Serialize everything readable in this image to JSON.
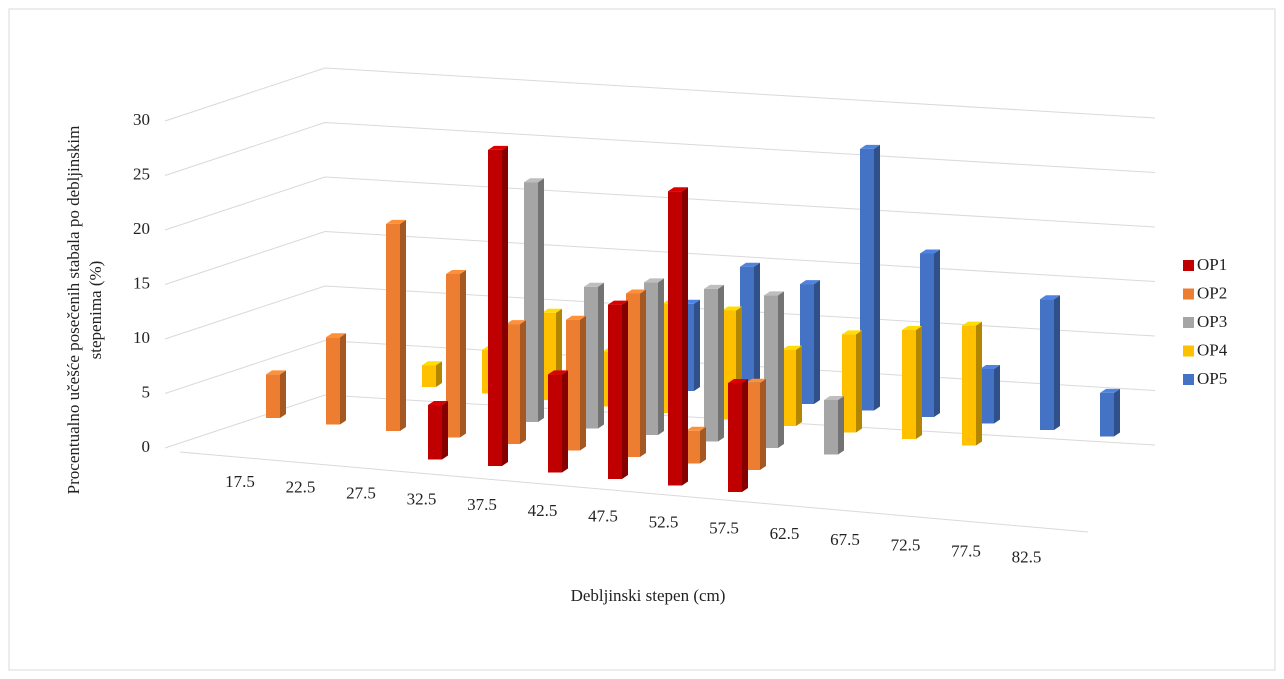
{
  "chart_data": {
    "type": "bar3d",
    "ylabel": [
      "Procentualno učešće posečenih stabala po debljinskim",
      "stepenima (%)"
    ],
    "xlabel": "Debljinski stepen (cm)",
    "categories": [
      "17.5",
      "22.5",
      "27.5",
      "32.5",
      "37.5",
      "42.5",
      "47.5",
      "52.5",
      "57.5",
      "62.5",
      "67.5",
      "72.5",
      "77.5",
      "82.5"
    ],
    "series": [
      {
        "name": "OP1",
        "color": "#c00000",
        "values": [
          null,
          null,
          null,
          5,
          29,
          9,
          16,
          27,
          10,
          null,
          null,
          null,
          null,
          null
        ]
      },
      {
        "name": "OP2",
        "color": "#ed7d31",
        "values": [
          4,
          8,
          19,
          15,
          11,
          12,
          15,
          3,
          8,
          null,
          null,
          null,
          null,
          null
        ]
      },
      {
        "name": "OP3",
        "color": "#a5a5a5",
        "values": [
          null,
          null,
          null,
          null,
          22,
          13,
          14,
          14,
          14,
          5,
          null,
          null,
          null,
          null
        ]
      },
      {
        "name": "OP4",
        "color": "#ffc000",
        "values": [
          null,
          null,
          2,
          4,
          8,
          5,
          10,
          10,
          7,
          9,
          10,
          11,
          null,
          null
        ]
      },
      {
        "name": "OP5",
        "color": "#4472c4",
        "values": [
          null,
          null,
          null,
          null,
          null,
          null,
          8,
          12,
          11,
          24,
          15,
          5,
          12,
          4
        ]
      }
    ],
    "ylim": [
      0,
      30
    ],
    "yticks": [
      0,
      5,
      10,
      15,
      20,
      25,
      30
    ],
    "grid": true,
    "legend": "right"
  }
}
